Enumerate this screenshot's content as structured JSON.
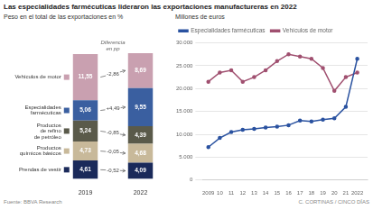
{
  "title": "Las especialidades farmécuticas lideraron las exportaciones manufactureras en 2022",
  "annotations": [
    "Fuente: BBVA Research",
    "C. CORTINAS / CINCO DÍAS"
  ],
  "chart_data": [
    {
      "type": "bar",
      "stacked": true,
      "subtitle": "Peso en el total de las exportaciones en %",
      "categories": [
        "2019",
        "2022"
      ],
      "data_labels": true,
      "tick_labels": "x",
      "annotations": [
        "Diferencia\nen pp"
      ],
      "series": [
        {
          "name": "Prendas de vestir",
          "color": "#1a2a5a",
          "values": [
            4.61,
            4.09
          ],
          "value_labels": [
            "4,61",
            "4,09"
          ],
          "annotation": "-0,52"
        },
        {
          "name": "Productos\nquímicos básicos",
          "color": "#c8b99a",
          "values": [
            4.73,
            4.68
          ],
          "value_labels": [
            "4,73",
            "4,68"
          ],
          "annotation": "-0,05"
        },
        {
          "name": "Productos\nde refino\nde petróleo",
          "color": "#5a5a4a",
          "values": [
            5.24,
            4.39
          ],
          "value_labels": [
            "5,24",
            "4,39"
          ],
          "annotation": "-0,85"
        },
        {
          "name": "Especialidades\nfarmécuticas",
          "color": "#3a5fa0",
          "values": [
            5.06,
            9.55
          ],
          "value_labels": [
            "5,06",
            "9,55"
          ],
          "annotation": "+4,49"
        },
        {
          "name": "Vehículos de motor",
          "color": "#c9a0b0",
          "values": [
            11.55,
            8.69
          ],
          "value_labels": [
            "11,55",
            "8,69"
          ],
          "annotation": "-2,86"
        }
      ]
    },
    {
      "type": "line",
      "subtitle": "Millones de euros",
      "x": [
        2009,
        2010,
        2011,
        2012,
        2013,
        2014,
        2015,
        2016,
        2017,
        2018,
        2019,
        2020,
        2021,
        2022
      ],
      "series": [
        {
          "name": "Especialidades farmécuticas",
          "color": "#2a52a0",
          "values": [
            7200,
            9200,
            10500,
            11000,
            11200,
            11500,
            11700,
            12000,
            13000,
            12800,
            13200,
            13500,
            16000,
            26500
          ]
        },
        {
          "name": "Vehículos de motor",
          "color": "#a05070",
          "values": [
            21500,
            23500,
            24000,
            21500,
            22500,
            24000,
            26000,
            27500,
            27000,
            26500,
            24500,
            19500,
            22500,
            23500
          ]
        }
      ],
      "xlim": [
        2008.5,
        2022.9
      ],
      "xticks": [
        2009,
        {
          "value": 2010,
          "label": "10"
        },
        {
          "value": 2011,
          "label": "11"
        },
        {
          "value": 2012,
          "label": "12"
        },
        {
          "value": 2013,
          "label": "13"
        },
        {
          "value": 2014,
          "label": "14"
        },
        {
          "value": 2015,
          "label": "15"
        },
        {
          "value": 2016,
          "label": "16"
        },
        {
          "value": 2017,
          "label": "17"
        },
        {
          "value": 2018,
          "label": "18"
        },
        {
          "value": 2019,
          "label": "19"
        },
        {
          "value": 2020,
          "label": "20"
        },
        {
          "value": 2021,
          "label": "21"
        },
        2022
      ],
      "ylim": [
        0,
        30000
      ],
      "yticks": [
        0,
        {
          "value": 5000,
          "label": "5.000"
        },
        {
          "value": 10000,
          "label": "10.000"
        },
        {
          "value": 15000,
          "label": "15.000"
        },
        {
          "value": 20000,
          "label": "20.000"
        },
        {
          "value": 25000,
          "label": "25.000"
        },
        {
          "value": 30000,
          "label": "30.000"
        }
      ],
      "grid": "y",
      "legend": "top"
    }
  ]
}
